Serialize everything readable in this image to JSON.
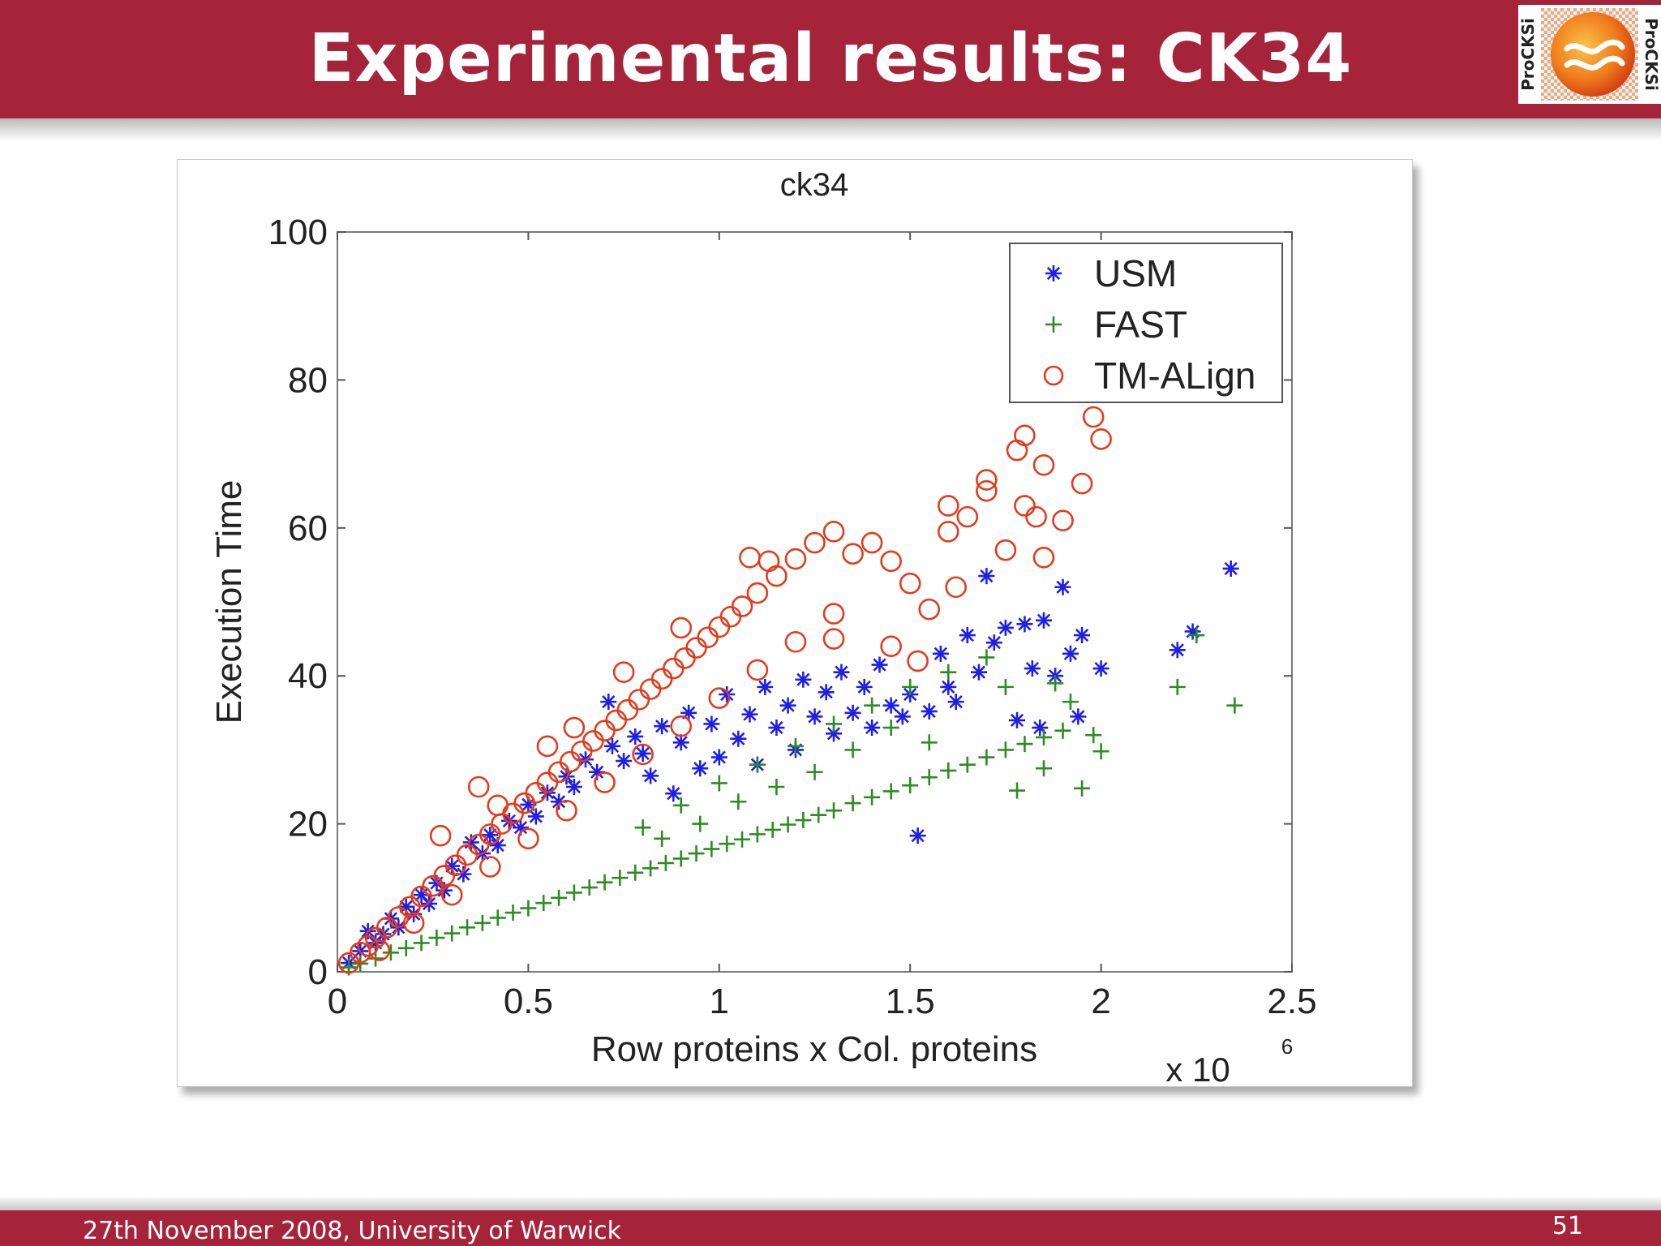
{
  "slide": {
    "title": "Experimental results: CK34",
    "footer": "27th November 2008, University of Warwick",
    "page_number": "51",
    "logo_text": "ProCKSi",
    "colors": {
      "header": "#a5243a",
      "text": "#ffffff"
    }
  },
  "chart_data": {
    "type": "scatter",
    "title": "ck34",
    "xlabel": "Row proteins x Col. proteins",
    "ylabel": "Execution Time",
    "x_multiplier_label": "x 10",
    "x_multiplier_exponent": "6",
    "xlim": [
      0,
      2.5
    ],
    "ylim": [
      0,
      100
    ],
    "xticks": [
      0,
      0.5,
      1,
      1.5,
      2,
      2.5
    ],
    "xtick_labels": [
      "0",
      "0.5",
      "1",
      "1.5",
      "2",
      "2.5"
    ],
    "yticks": [
      0,
      20,
      40,
      60,
      80,
      100
    ],
    "ytick_labels": [
      "0",
      "20",
      "40",
      "60",
      "80",
      "100"
    ],
    "grid": false,
    "legend_position": "top-right",
    "series": [
      {
        "name": "USM",
        "marker": "asterisk",
        "color": "#1f1fe8",
        "points": [
          [
            0.03,
            1.2
          ],
          [
            0.06,
            2.8
          ],
          [
            0.08,
            5.5
          ],
          [
            0.1,
            3.9
          ],
          [
            0.12,
            5.1
          ],
          [
            0.14,
            7.2
          ],
          [
            0.16,
            6
          ],
          [
            0.18,
            8.8
          ],
          [
            0.2,
            7.8
          ],
          [
            0.22,
            10.4
          ],
          [
            0.24,
            9.2
          ],
          [
            0.26,
            12
          ],
          [
            0.28,
            11
          ],
          [
            0.3,
            14.3
          ],
          [
            0.33,
            13.2
          ],
          [
            0.35,
            17.5
          ],
          [
            0.38,
            16
          ],
          [
            0.4,
            18.5
          ],
          [
            0.42,
            17.1
          ],
          [
            0.45,
            20.4
          ],
          [
            0.48,
            19.5
          ],
          [
            0.5,
            22.6
          ],
          [
            0.52,
            21
          ],
          [
            0.55,
            24.2
          ],
          [
            0.58,
            23
          ],
          [
            0.6,
            26.4
          ],
          [
            0.62,
            25
          ],
          [
            0.65,
            28.7
          ],
          [
            0.68,
            27
          ],
          [
            0.71,
            36.5
          ],
          [
            0.72,
            30.5
          ],
          [
            0.75,
            28.5
          ],
          [
            0.78,
            31.8
          ],
          [
            0.8,
            29.5
          ],
          [
            0.82,
            26.5
          ],
          [
            0.85,
            33.2
          ],
          [
            0.88,
            24.1
          ],
          [
            0.9,
            31
          ],
          [
            0.92,
            35
          ],
          [
            0.95,
            27.5
          ],
          [
            0.98,
            33.5
          ],
          [
            1,
            29
          ],
          [
            1.02,
            37.5
          ],
          [
            1.05,
            31.5
          ],
          [
            1.08,
            34.8
          ],
          [
            1.1,
            28
          ],
          [
            1.12,
            38.5
          ],
          [
            1.15,
            33
          ],
          [
            1.18,
            36
          ],
          [
            1.2,
            30
          ],
          [
            1.22,
            39.5
          ],
          [
            1.25,
            34.5
          ],
          [
            1.28,
            37.8
          ],
          [
            1.3,
            32.2
          ],
          [
            1.32,
            40.5
          ],
          [
            1.35,
            35
          ],
          [
            1.38,
            38.5
          ],
          [
            1.4,
            33
          ],
          [
            1.42,
            41.5
          ],
          [
            1.45,
            36
          ],
          [
            1.48,
            34.5
          ],
          [
            1.5,
            37.5
          ],
          [
            1.52,
            18.4
          ],
          [
            1.55,
            35.2
          ],
          [
            1.58,
            43
          ],
          [
            1.6,
            38.5
          ],
          [
            1.62,
            36.5
          ],
          [
            1.65,
            45.5
          ],
          [
            1.68,
            40.5
          ],
          [
            1.7,
            53.5
          ],
          [
            1.72,
            44.5
          ],
          [
            1.75,
            46.5
          ],
          [
            1.78,
            34
          ],
          [
            1.8,
            47
          ],
          [
            1.82,
            41
          ],
          [
            1.84,
            33
          ],
          [
            1.85,
            47.5
          ],
          [
            1.88,
            40
          ],
          [
            1.9,
            52
          ],
          [
            1.92,
            43
          ],
          [
            1.94,
            34.5
          ],
          [
            1.95,
            45.5
          ],
          [
            2,
            41
          ],
          [
            2.2,
            43.5
          ],
          [
            2.24,
            46
          ],
          [
            2.34,
            54.5
          ]
        ]
      },
      {
        "name": "FAST",
        "marker": "plus",
        "color": "#2e8b22",
        "points": [
          [
            0.03,
            0.6
          ],
          [
            0.06,
            1.1
          ],
          [
            0.1,
            1.8
          ],
          [
            0.14,
            2.6
          ],
          [
            0.18,
            3.2
          ],
          [
            0.22,
            3.9
          ],
          [
            0.26,
            4.6
          ],
          [
            0.3,
            5.2
          ],
          [
            0.34,
            6
          ],
          [
            0.38,
            6.6
          ],
          [
            0.42,
            7.3
          ],
          [
            0.46,
            8
          ],
          [
            0.5,
            8.6
          ],
          [
            0.54,
            9.3
          ],
          [
            0.58,
            10
          ],
          [
            0.62,
            10.7
          ],
          [
            0.66,
            11.4
          ],
          [
            0.7,
            12.1
          ],
          [
            0.74,
            12.7
          ],
          [
            0.78,
            13.4
          ],
          [
            0.82,
            14
          ],
          [
            0.86,
            14.7
          ],
          [
            0.9,
            15.3
          ],
          [
            0.94,
            16
          ],
          [
            0.98,
            16.6
          ],
          [
            1.02,
            17.3
          ],
          [
            1.06,
            17.9
          ],
          [
            1.1,
            18.6
          ],
          [
            1.14,
            19.2
          ],
          [
            1.18,
            19.9
          ],
          [
            1.22,
            20.5
          ],
          [
            1.26,
            21.2
          ],
          [
            1.3,
            21.8
          ],
          [
            1.35,
            22.8
          ],
          [
            1.4,
            23.6
          ],
          [
            1.45,
            24.4
          ],
          [
            1.5,
            25.2
          ],
          [
            1.55,
            26.3
          ],
          [
            1.6,
            27.2
          ],
          [
            1.65,
            28
          ],
          [
            1.7,
            29
          ],
          [
            1.75,
            30
          ],
          [
            1.8,
            30.8
          ],
          [
            1.85,
            31.7
          ],
          [
            1.9,
            32.6
          ],
          [
            1.95,
            24.8
          ],
          [
            2,
            29.8
          ],
          [
            0.8,
            19.5
          ],
          [
            0.9,
            22.5
          ],
          [
            1,
            25.5
          ],
          [
            1.1,
            28
          ],
          [
            1.2,
            30.5
          ],
          [
            1.3,
            33.5
          ],
          [
            1.4,
            36
          ],
          [
            1.5,
            38.5
          ],
          [
            1.6,
            40.5
          ],
          [
            1.7,
            42.5
          ],
          [
            1.75,
            38.5
          ],
          [
            1.78,
            24.5
          ],
          [
            1.85,
            27.5
          ],
          [
            1.88,
            39
          ],
          [
            1.92,
            36.5
          ],
          [
            1.98,
            32
          ],
          [
            2.2,
            38.5
          ],
          [
            2.35,
            36
          ],
          [
            2.25,
            45.5
          ],
          [
            1.45,
            33
          ],
          [
            1.55,
            31
          ],
          [
            1.35,
            30
          ],
          [
            1.25,
            27
          ],
          [
            1.15,
            25
          ],
          [
            1.05,
            23
          ],
          [
            0.95,
            20
          ],
          [
            0.85,
            18
          ]
        ]
      },
      {
        "name": "TM-ALign",
        "marker": "circle",
        "color": "#e23b1d",
        "points": [
          [
            0.03,
            1.2
          ],
          [
            0.06,
            2.6
          ],
          [
            0.08,
            3.5
          ],
          [
            0.1,
            4.6
          ],
          [
            0.13,
            6
          ],
          [
            0.16,
            7.4
          ],
          [
            0.19,
            8.8
          ],
          [
            0.22,
            10.2
          ],
          [
            0.25,
            11.6
          ],
          [
            0.28,
            13
          ],
          [
            0.31,
            14.4
          ],
          [
            0.34,
            15.8
          ],
          [
            0.37,
            17.2
          ],
          [
            0.4,
            18.6
          ],
          [
            0.43,
            20
          ],
          [
            0.46,
            21.4
          ],
          [
            0.49,
            22.8
          ],
          [
            0.52,
            24.2
          ],
          [
            0.55,
            25.6
          ],
          [
            0.58,
            27
          ],
          [
            0.61,
            28.4
          ],
          [
            0.64,
            29.8
          ],
          [
            0.67,
            31.2
          ],
          [
            0.7,
            32.6
          ],
          [
            0.73,
            34
          ],
          [
            0.76,
            35.4
          ],
          [
            0.79,
            36.8
          ],
          [
            0.82,
            38.2
          ],
          [
            0.85,
            39.6
          ],
          [
            0.88,
            41
          ],
          [
            0.91,
            42.4
          ],
          [
            0.94,
            43.8
          ],
          [
            0.97,
            45.2
          ],
          [
            1,
            46.6
          ],
          [
            1.03,
            48
          ],
          [
            1.06,
            49.4
          ],
          [
            1.1,
            51.2
          ],
          [
            1.15,
            53.5
          ],
          [
            1.2,
            55.8
          ],
          [
            1.25,
            58
          ],
          [
            1.3,
            59.5
          ],
          [
            1.35,
            56.5
          ],
          [
            1.4,
            58
          ],
          [
            1.45,
            55.5
          ],
          [
            1.5,
            52.5
          ],
          [
            1.55,
            49
          ],
          [
            1.6,
            63
          ],
          [
            1.65,
            61.5
          ],
          [
            1.7,
            65
          ],
          [
            1.75,
            57
          ],
          [
            1.8,
            63
          ],
          [
            1.85,
            56
          ],
          [
            1.9,
            61
          ],
          [
            1.95,
            66
          ],
          [
            2,
            72
          ],
          [
            1.98,
            75
          ],
          [
            1.85,
            68.5
          ],
          [
            1.78,
            70.5
          ],
          [
            0.11,
            2.9
          ],
          [
            0.2,
            6.6
          ],
          [
            0.3,
            10.4
          ],
          [
            0.4,
            14.2
          ],
          [
            0.5,
            18
          ],
          [
            0.6,
            21.8
          ],
          [
            0.7,
            25.6
          ],
          [
            0.8,
            29.4
          ],
          [
            0.9,
            33.2
          ],
          [
            1,
            37
          ],
          [
            1.1,
            40.8
          ],
          [
            1.2,
            44.6
          ],
          [
            1.3,
            48.4
          ],
          [
            0.27,
            18.4
          ],
          [
            0.37,
            25
          ],
          [
            0.42,
            22.5
          ],
          [
            0.55,
            30.5
          ],
          [
            0.62,
            33
          ],
          [
            0.75,
            40.5
          ],
          [
            0.9,
            46.5
          ],
          [
            1.08,
            56
          ],
          [
            1.13,
            55.5
          ],
          [
            1.3,
            45
          ],
          [
            1.45,
            44
          ],
          [
            1.52,
            42
          ],
          [
            1.6,
            59.5
          ],
          [
            1.7,
            66.5
          ],
          [
            1.8,
            72.5
          ],
          [
            1.83,
            61.5
          ],
          [
            1.62,
            52
          ]
        ]
      }
    ]
  }
}
